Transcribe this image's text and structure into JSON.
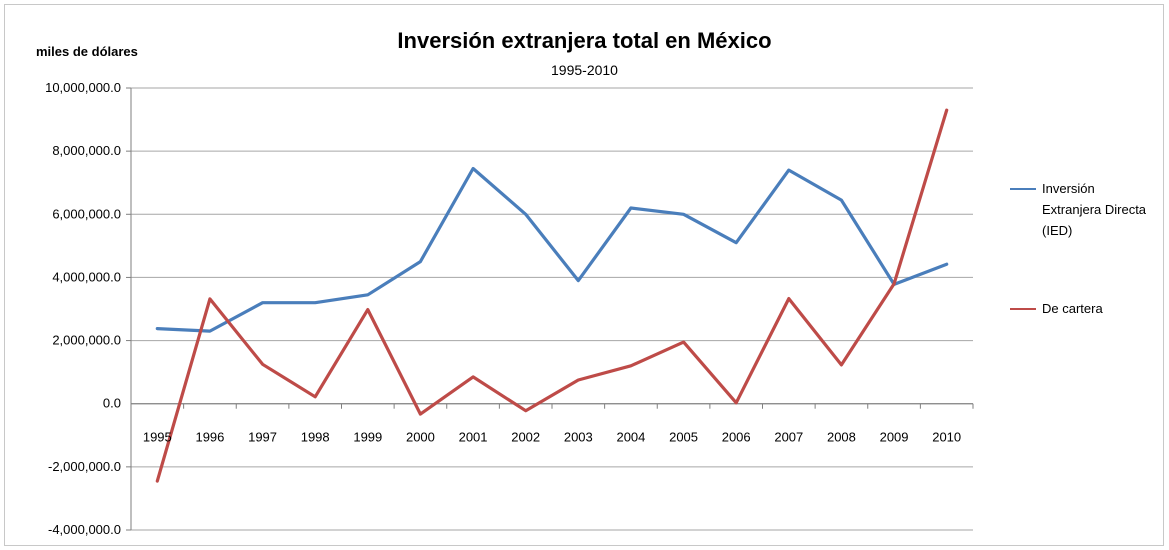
{
  "chart_data": {
    "type": "line",
    "title": "Inversión extranjera total en México",
    "subtitle": "1995-2010",
    "ylabel": "miles de dólares",
    "xlabel": "",
    "ylim": [
      -4000000,
      10000000
    ],
    "y_ticks": [
      "10,000,000.0",
      "8,000,000.0",
      "6,000,000.0",
      "4,000,000.0",
      "2,000,000.0",
      "0.0",
      "-2,000,000.0",
      "-4,000,000.0"
    ],
    "y_tick_values": [
      10000000,
      8000000,
      6000000,
      4000000,
      2000000,
      0,
      -2000000,
      -4000000
    ],
    "categories": [
      "1995",
      "1996",
      "1997",
      "1998",
      "1999",
      "2000",
      "2001",
      "2002",
      "2003",
      "2004",
      "2005",
      "2006",
      "2007",
      "2008",
      "2009",
      "2010"
    ],
    "grid": "horizontal",
    "legend_position": "right",
    "series": [
      {
        "name": "Inversión Extranjera Directa (IED)",
        "legend_lines": [
          "Inversión",
          "Extranjera Directa",
          "(IED)"
        ],
        "color": "#4a7ebb",
        "values": [
          2380000,
          2300000,
          3200000,
          3200000,
          3450000,
          4500000,
          7450000,
          6000000,
          3900000,
          6200000,
          6000000,
          5100000,
          7400000,
          6450000,
          3780000,
          4420000
        ]
      },
      {
        "name": "De cartera",
        "legend_lines": [
          "De cartera"
        ],
        "color": "#be4b48",
        "values": [
          -2450000,
          3320000,
          1250000,
          220000,
          2980000,
          -330000,
          850000,
          -220000,
          750000,
          1200000,
          1950000,
          30000,
          3330000,
          1230000,
          3800000,
          9300000
        ]
      }
    ]
  }
}
